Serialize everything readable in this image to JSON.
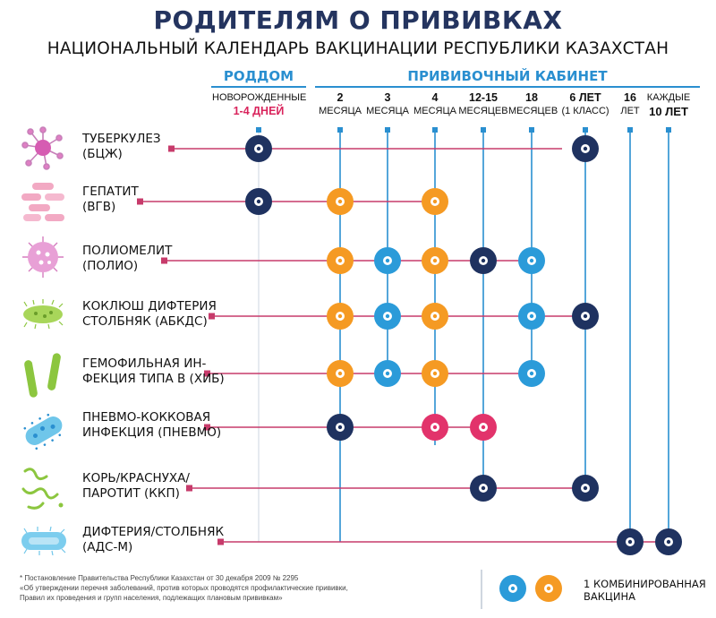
{
  "title": "РОДИТЕЛЯМ О ПРИВИВКАХ",
  "subtitle": "НАЦИОНАЛЬНЫЙ КАЛЕНДАРЬ ВАКЦИНАЦИИ РЕСПУБЛИКИ КАЗАХСТАН",
  "sections": {
    "maternity": "РОДДОМ",
    "clinic": "ПРИВИВОЧНЫЙ КАБИНЕТ"
  },
  "colors": {
    "navy": "#1f3260",
    "orange": "#f59a23",
    "blue": "#2b9bd9",
    "pink": "#e2336b",
    "connector": "#c73b6b",
    "vline": "#2a8fd0"
  },
  "columns": [
    {
      "id": "newborn",
      "l1": "НОВОРОЖДЕННЫЕ",
      "l2": "1-4 ДНЕЙ"
    },
    {
      "id": "m2",
      "l1": "2",
      "l2": "МЕСЯЦА"
    },
    {
      "id": "m3",
      "l1": "3",
      "l2": "МЕСЯЦА"
    },
    {
      "id": "m4",
      "l1": "4",
      "l2": "МЕСЯЦА"
    },
    {
      "id": "m12",
      "l1": "12-15",
      "l2": "МЕСЯЦЕВ"
    },
    {
      "id": "m18",
      "l1": "18",
      "l2": "МЕСЯЦЕВ"
    },
    {
      "id": "y6",
      "l1": "6 ЛЕТ",
      "l2": "(1 КЛАСС)"
    },
    {
      "id": "y16",
      "l1": "16",
      "l2": "ЛЕТ"
    },
    {
      "id": "y10",
      "l1": "КАЖДЫЕ",
      "l2": "10 ЛЕТ"
    }
  ],
  "rows": [
    {
      "line1": "ТУБЕРКУЛЕЗ",
      "line2": "(БЦЖ)",
      "icon": "tuberculosis-icon",
      "doses": [
        {
          "col": 0,
          "color": "navy"
        },
        {
          "col": 6,
          "color": "navy"
        }
      ]
    },
    {
      "line1": "ГЕПАТИТ",
      "line2": "(ВГВ)",
      "icon": "hepatitis-icon",
      "doses": [
        {
          "col": 0,
          "color": "navy"
        },
        {
          "col": 1,
          "color": "orange"
        },
        {
          "col": 3,
          "color": "orange"
        }
      ]
    },
    {
      "line1": "ПОЛИОМЕЛИТ",
      "line2": "(ПОЛИО)",
      "icon": "poliomyelitis-icon",
      "doses": [
        {
          "col": 1,
          "color": "orange"
        },
        {
          "col": 2,
          "color": "blue"
        },
        {
          "col": 3,
          "color": "orange"
        },
        {
          "col": 4,
          "color": "navy"
        },
        {
          "col": 5,
          "color": "blue"
        }
      ]
    },
    {
      "line1": "КОКЛЮШ ДИФТЕРИЯ",
      "line2": "СТОЛБНЯК (АБКДС)",
      "icon": "pertussis-icon",
      "doses": [
        {
          "col": 1,
          "color": "orange"
        },
        {
          "col": 2,
          "color": "blue"
        },
        {
          "col": 3,
          "color": "orange"
        },
        {
          "col": 5,
          "color": "blue"
        },
        {
          "col": 6,
          "color": "navy"
        }
      ]
    },
    {
      "line1": "ГЕМОФИЛЬНАЯ ИН-",
      "line2": "ФЕКЦИЯ ТИПА В (ХИБ)",
      "icon": "haemophilus-icon",
      "doses": [
        {
          "col": 1,
          "color": "orange"
        },
        {
          "col": 2,
          "color": "blue"
        },
        {
          "col": 3,
          "color": "orange"
        },
        {
          "col": 5,
          "color": "blue"
        }
      ]
    },
    {
      "line1": "ПНЕВМО-КОККОВАЯ",
      "line2": "ИНФЕКЦИЯ (ПНЕВМО)",
      "icon": "pneumococcus-icon",
      "doses": [
        {
          "col": 1,
          "color": "navy"
        },
        {
          "col": 3,
          "color": "pink"
        },
        {
          "col": 4,
          "color": "pink"
        }
      ]
    },
    {
      "line1": "КОРЬ/КРАСНУХА/",
      "line2": "ПАРОТИТ (ККП)",
      "icon": "measles-icon",
      "doses": [
        {
          "col": 4,
          "color": "navy"
        },
        {
          "col": 6,
          "color": "navy"
        }
      ]
    },
    {
      "line1": "ДИФТЕРИЯ/СТОЛБНЯК",
      "line2": "(АДС-М)",
      "icon": "diphtheria-icon",
      "doses": [
        {
          "col": 7,
          "color": "navy"
        },
        {
          "col": 8,
          "color": "navy"
        }
      ]
    }
  ],
  "footnote": {
    "line1": "* Постановление Правительства Республики Казахстан от 30 декабря 2009 № 2295",
    "line2": "«Об утверждении перечня заболеваний, против которых проводятся профилактические прививки,",
    "line3": "Правил их проведения и групп населения, подлежащих плановым прививкам»"
  },
  "legend": {
    "line1": "1 КОМБИНИРОВАННАЯ",
    "line2": "ВАКЦИНА"
  }
}
